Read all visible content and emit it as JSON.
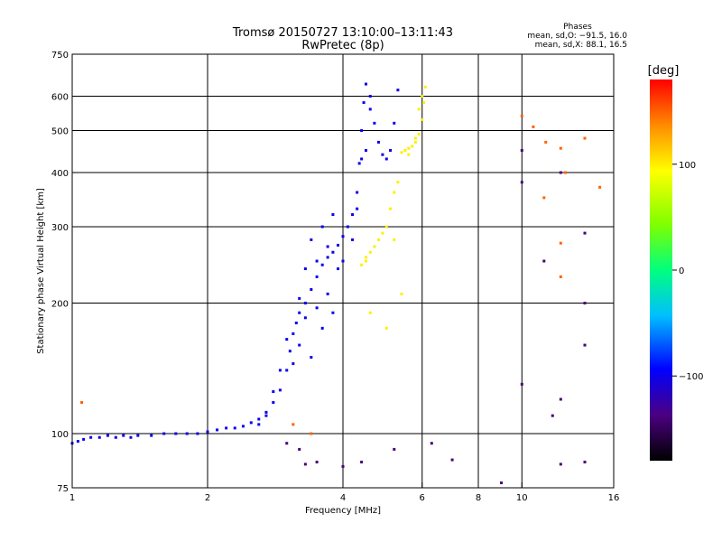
{
  "chart_data": {
    "type": "scatter",
    "title": "Tromsø 20150727 13:10:00–13:11:43",
    "subtitle": "RwPretec (8p)",
    "phases": {
      "heading": "Phases",
      "o_line": "mean, sd,O: −91.5, 16.0",
      "x_line": "mean, sd,X:  88.1, 16.5"
    },
    "xlabel": "Frequency [MHz]",
    "ylabel": "Stationary phase Virtual Height [km]",
    "x_scale": "log",
    "y_scale": "log",
    "xlim": [
      1,
      16
    ],
    "ylim": [
      75,
      750
    ],
    "x_ticks": [
      1,
      2,
      4,
      6,
      8,
      10,
      16
    ],
    "x_tick_labels": [
      "1",
      "2",
      "4",
      "6",
      "8",
      "10",
      "16"
    ],
    "x_grid": [
      2,
      4,
      6,
      8,
      10
    ],
    "y_ticks": [
      75,
      100,
      200,
      300,
      400,
      500,
      600,
      750
    ],
    "y_tick_labels": [
      "75",
      "100",
      "200",
      "300",
      "400",
      "500",
      "600",
      "750"
    ],
    "y_grid": [
      100,
      200,
      300,
      400,
      500,
      600
    ],
    "grid": true,
    "colorbar": {
      "label": "[deg]",
      "range": [
        -180,
        180
      ],
      "ticks": [
        100,
        0,
        -100
      ],
      "tick_labels": [
        "100",
        "0",
        "−100"
      ]
    },
    "series": [
      {
        "mode": "O",
        "phase_deg": -100,
        "points": [
          [
            1.0,
            95
          ],
          [
            1.03,
            96
          ],
          [
            1.06,
            97
          ],
          [
            1.1,
            98
          ],
          [
            1.15,
            98
          ],
          [
            1.2,
            99
          ],
          [
            1.25,
            98
          ],
          [
            1.3,
            99
          ],
          [
            1.35,
            98
          ],
          [
            1.4,
            99
          ],
          [
            1.5,
            99
          ],
          [
            1.6,
            100
          ],
          [
            1.7,
            100
          ],
          [
            1.8,
            100
          ],
          [
            1.9,
            100
          ],
          [
            2.0,
            101
          ],
          [
            2.1,
            102
          ],
          [
            2.2,
            103
          ],
          [
            2.3,
            103
          ],
          [
            2.4,
            104
          ],
          [
            2.5,
            106
          ],
          [
            2.6,
            108
          ],
          [
            2.7,
            112
          ],
          [
            2.8,
            118
          ],
          [
            2.9,
            126
          ],
          [
            3.0,
            140
          ],
          [
            3.05,
            155
          ],
          [
            3.1,
            170
          ],
          [
            3.15,
            180
          ],
          [
            3.2,
            190
          ],
          [
            3.3,
            200
          ],
          [
            3.4,
            215
          ],
          [
            3.5,
            230
          ],
          [
            3.6,
            245
          ],
          [
            3.7,
            255
          ],
          [
            3.8,
            262
          ],
          [
            3.9,
            272
          ],
          [
            4.0,
            285
          ],
          [
            4.1,
            300
          ],
          [
            4.2,
            320
          ],
          [
            4.3,
            360
          ],
          [
            4.35,
            420
          ],
          [
            4.4,
            500
          ],
          [
            4.45,
            580
          ],
          [
            4.5,
            640
          ],
          [
            4.6,
            600
          ],
          [
            4.7,
            520
          ],
          [
            4.8,
            470
          ],
          [
            4.9,
            440
          ],
          [
            5.0,
            430
          ],
          [
            5.1,
            450
          ],
          [
            5.2,
            520
          ],
          [
            5.3,
            620
          ],
          [
            3.2,
            160
          ],
          [
            3.3,
            185
          ],
          [
            3.4,
            150
          ],
          [
            3.5,
            195
          ],
          [
            3.6,
            175
          ],
          [
            3.7,
            210
          ],
          [
            3.8,
            190
          ],
          [
            3.5,
            250
          ],
          [
            3.7,
            270
          ],
          [
            3.9,
            240
          ],
          [
            4.0,
            250
          ],
          [
            4.2,
            280
          ],
          [
            4.3,
            330
          ],
          [
            3.4,
            280
          ],
          [
            3.6,
            300
          ],
          [
            3.8,
            320
          ],
          [
            3.0,
            165
          ],
          [
            3.1,
            145
          ],
          [
            3.2,
            205
          ],
          [
            3.3,
            240
          ],
          [
            2.9,
            140
          ],
          [
            2.8,
            125
          ],
          [
            2.7,
            110
          ],
          [
            2.6,
            105
          ],
          [
            4.4,
            430
          ],
          [
            4.5,
            450
          ],
          [
            4.6,
            560
          ]
        ]
      },
      {
        "mode": "X",
        "phase_deg": 100,
        "points": [
          [
            4.4,
            245
          ],
          [
            4.5,
            255
          ],
          [
            4.6,
            262
          ],
          [
            4.7,
            270
          ],
          [
            4.8,
            280
          ],
          [
            4.9,
            290
          ],
          [
            5.0,
            300
          ],
          [
            5.1,
            330
          ],
          [
            5.2,
            360
          ],
          [
            5.3,
            380
          ],
          [
            5.5,
            450
          ],
          [
            5.6,
            455
          ],
          [
            5.7,
            460
          ],
          [
            5.8,
            470
          ],
          [
            5.9,
            490
          ],
          [
            6.0,
            530
          ],
          [
            6.05,
            580
          ],
          [
            6.1,
            630
          ],
          [
            5.6,
            440
          ],
          [
            5.8,
            480
          ],
          [
            5.9,
            560
          ],
          [
            4.6,
            190
          ],
          [
            5.0,
            175
          ],
          [
            5.4,
            210
          ],
          [
            4.5,
            250
          ],
          [
            5.2,
            280
          ],
          [
            5.4,
            445
          ],
          [
            6.0,
            600
          ]
        ]
      },
      {
        "mode": "scattered",
        "phase_deg": 150,
        "points": [
          [
            1.05,
            118
          ],
          [
            3.1,
            105
          ],
          [
            3.4,
            100
          ],
          [
            10,
            540
          ],
          [
            10.6,
            510
          ],
          [
            11.3,
            470
          ],
          [
            12.2,
            455
          ],
          [
            12.5,
            400
          ],
          [
            13.8,
            480
          ],
          [
            14.9,
            370
          ],
          [
            11.2,
            350
          ],
          [
            12.2,
            275
          ],
          [
            12.2,
            230
          ]
        ]
      },
      {
        "mode": "scattered",
        "phase_deg": -140,
        "points": [
          [
            3.0,
            95
          ],
          [
            3.2,
            92
          ],
          [
            3.3,
            85
          ],
          [
            3.5,
            86
          ],
          [
            4.0,
            84
          ],
          [
            4.4,
            86
          ],
          [
            5.2,
            92
          ],
          [
            6.3,
            95
          ],
          [
            7.0,
            87
          ],
          [
            9.0,
            77
          ],
          [
            10,
            450
          ],
          [
            10,
            380
          ],
          [
            11.2,
            250
          ],
          [
            12.2,
            400
          ],
          [
            12.2,
            120
          ],
          [
            12.2,
            85
          ],
          [
            13.8,
            290
          ],
          [
            13.8,
            200
          ],
          [
            13.8,
            160
          ],
          [
            13.8,
            86
          ],
          [
            11.7,
            110
          ],
          [
            10,
            130
          ]
        ]
      }
    ]
  }
}
